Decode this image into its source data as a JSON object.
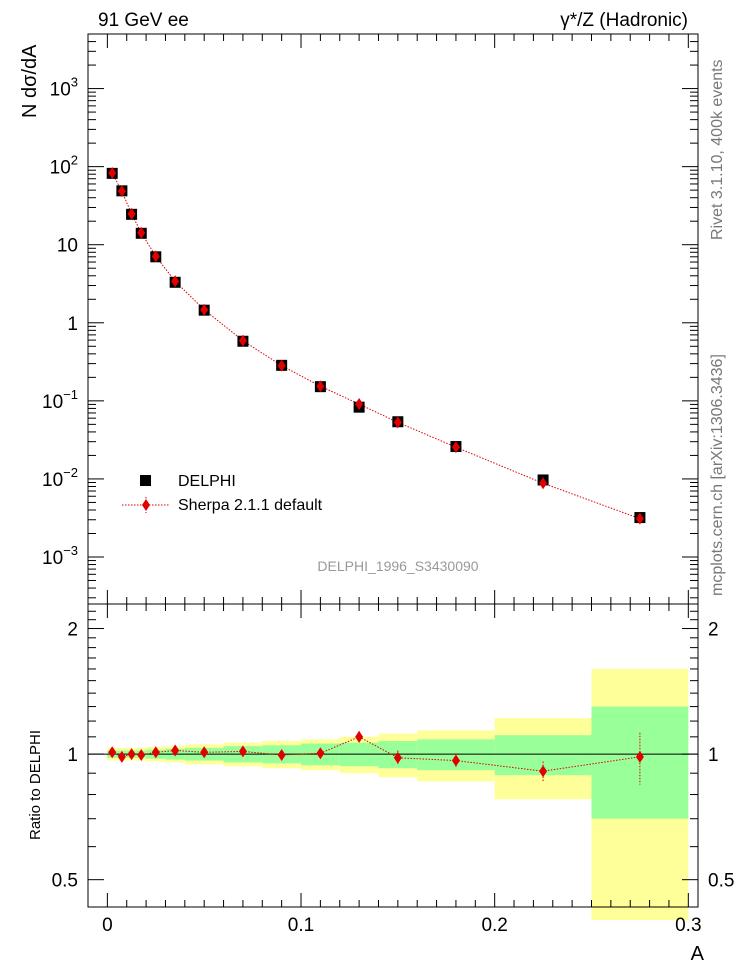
{
  "header": {
    "left": "91 GeV ee",
    "right": "γ*/Z (Hadronic)"
  },
  "side_notes": {
    "rivet": "Rivet 3.1.10, 400k events",
    "source": "mcplots.cern.ch [arXiv:1306.3436]"
  },
  "watermark": "DELPHI_1996_S3430090",
  "legend": {
    "data_label": "DELPHI",
    "mc_label": "Sherpa 2.1.1 default"
  },
  "colors": {
    "data": "#000000",
    "mc": "#e00000",
    "band_inner": "#99ff99",
    "band_outer": "#ffff99"
  },
  "chart_data": [
    {
      "type": "scatter",
      "panel": "main",
      "ylabel": "N dσ/dA",
      "xlim": [
        -0.01,
        0.305
      ],
      "ylim": [
        0.00025,
        5000
      ],
      "yscale": "log",
      "yticks": [
        {
          "value": 0.001,
          "base": "10",
          "exp": "−3"
        },
        {
          "value": 0.01,
          "base": "10",
          "exp": "−2"
        },
        {
          "value": 0.1,
          "base": "10",
          "exp": "−1"
        },
        {
          "value": 1,
          "base": "1",
          "exp": ""
        },
        {
          "value": 10,
          "base": "10",
          "exp": ""
        },
        {
          "value": 100,
          "base": "10",
          "exp": "2"
        },
        {
          "value": 1000,
          "base": "10",
          "exp": "3"
        }
      ],
      "x": [
        0.0025,
        0.0075,
        0.0125,
        0.0175,
        0.025,
        0.035,
        0.05,
        0.07,
        0.09,
        0.11,
        0.13,
        0.15,
        0.18,
        0.225,
        0.275
      ],
      "series": [
        {
          "name": "DELPHI",
          "values": [
            82,
            49,
            24.5,
            14,
            7,
            3.3,
            1.45,
            0.58,
            0.285,
            0.152,
            0.083,
            0.054,
            0.026,
            0.0097,
            0.0032
          ]
        },
        {
          "name": "Sherpa 2.1.1 default",
          "values": [
            83,
            48.5,
            24.8,
            14.2,
            7.1,
            3.4,
            1.47,
            0.59,
            0.283,
            0.154,
            0.091,
            0.053,
            0.0255,
            0.0088,
            0.0031
          ]
        }
      ]
    },
    {
      "type": "scatter",
      "panel": "ratio",
      "xlabel": "A",
      "ylabel": "Ratio to DELPHI",
      "xlim": [
        -0.01,
        0.305
      ],
      "ylim": [
        0.43,
        2.29
      ],
      "yscale": "log",
      "yticks": [
        0.5,
        1,
        2
      ],
      "ytick_labels": [
        "0.5",
        "1",
        "2"
      ],
      "xticks": [
        0,
        0.1,
        0.2,
        0.3
      ],
      "xtick_labels": [
        "0",
        "0.1",
        "0.2",
        "0.3"
      ],
      "bin_edges": [
        0,
        0.005,
        0.01,
        0.015,
        0.02,
        0.03,
        0.04,
        0.06,
        0.08,
        0.1,
        0.12,
        0.14,
        0.16,
        0.2,
        0.25,
        0.3
      ],
      "band_inner": [
        0.02,
        0.02,
        0.02,
        0.02,
        0.025,
        0.03,
        0.035,
        0.045,
        0.05,
        0.06,
        0.065,
        0.075,
        0.085,
        0.11,
        0.3
      ],
      "band_outer": [
        0.035,
        0.035,
        0.035,
        0.035,
        0.04,
        0.045,
        0.055,
        0.065,
        0.075,
        0.085,
        0.1,
        0.12,
        0.14,
        0.22,
        0.6
      ],
      "x": [
        0.0025,
        0.0075,
        0.0125,
        0.0175,
        0.025,
        0.035,
        0.05,
        0.07,
        0.09,
        0.11,
        0.13,
        0.15,
        0.18,
        0.225,
        0.275
      ],
      "ratio": [
        1.01,
        0.985,
        1.0,
        0.995,
        1.01,
        1.02,
        1.01,
        1.015,
        0.995,
        1.005,
        1.1,
        0.98,
        0.965,
        0.91,
        0.985
      ],
      "ratio_err": [
        0.015,
        0.015,
        0.015,
        0.015,
        0.015,
        0.015,
        0.02,
        0.02,
        0.02,
        0.02,
        0.035,
        0.04,
        0.04,
        0.05,
        0.14
      ]
    }
  ]
}
